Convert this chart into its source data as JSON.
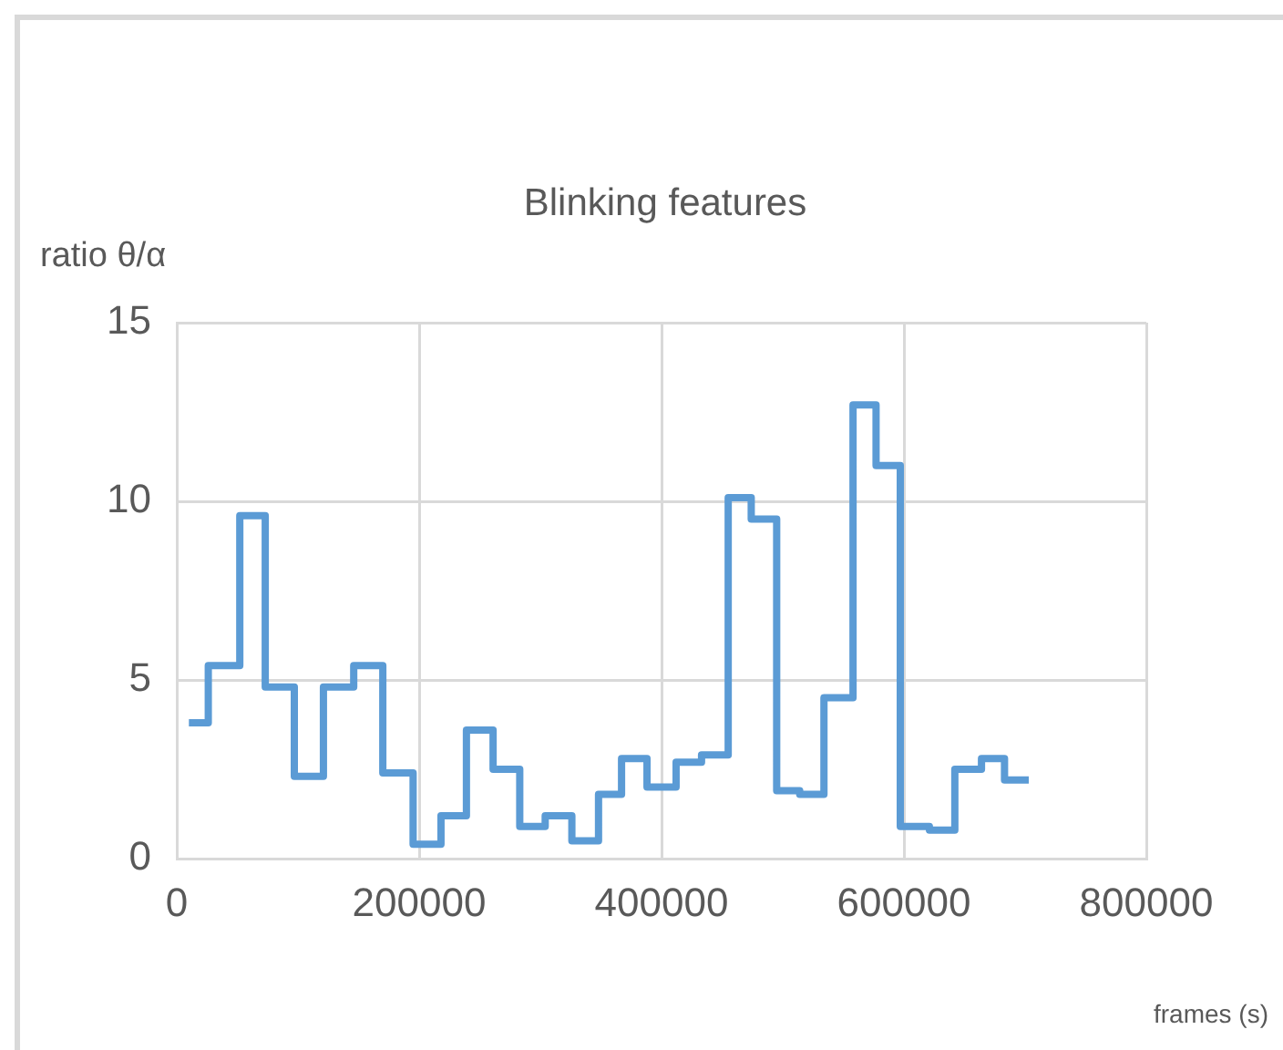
{
  "chart_data": {
    "type": "step",
    "title": "Blinking features",
    "ylabel": "ratio θ/α",
    "xlabel": "frames (s)",
    "x": [
      10000,
      26000,
      52000,
      73000,
      97000,
      121000,
      146000,
      170000,
      195000,
      218000,
      239000,
      261000,
      283000,
      304000,
      326000,
      348000,
      367000,
      388000,
      412000,
      433000,
      455000,
      474000,
      495000,
      514000,
      534000,
      558000,
      577000,
      597000,
      621000,
      642000,
      664000,
      683000,
      703000
    ],
    "series": [
      {
        "color": "#5b9bd5",
        "values": [
          3.8,
          5.4,
          9.6,
          4.8,
          2.3,
          4.8,
          5.4,
          2.4,
          0.4,
          1.2,
          3.6,
          2.5,
          0.9,
          1.2,
          0.5,
          1.8,
          2.8,
          2.0,
          2.7,
          2.9,
          10.1,
          9.5,
          1.9,
          1.8,
          4.5,
          12.7,
          11.0,
          0.9,
          0.8,
          2.5,
          2.8,
          2.2,
          2.2
        ]
      }
    ],
    "xlim": [
      0,
      800000
    ],
    "xticks": [
      0,
      200000,
      400000,
      600000,
      800000
    ],
    "ylim": [
      0,
      15
    ],
    "yticks": [
      0,
      5,
      10,
      15
    ],
    "grid": true,
    "legend": false,
    "marker": "none",
    "line_style": "solid"
  }
}
